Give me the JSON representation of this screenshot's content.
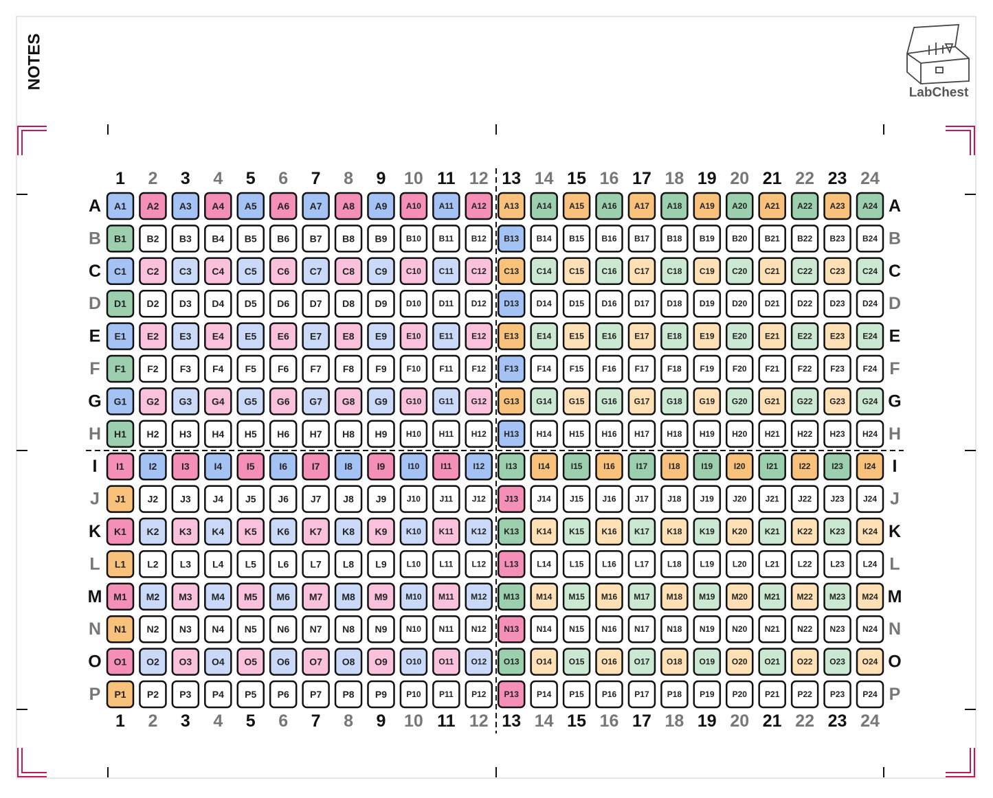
{
  "notes": "NOTES",
  "brand": "LabChest",
  "columns": [
    "1",
    "2",
    "3",
    "4",
    "5",
    "6",
    "7",
    "8",
    "9",
    "10",
    "11",
    "12",
    "13",
    "14",
    "15",
    "16",
    "17",
    "18",
    "19",
    "20",
    "21",
    "22",
    "23",
    "24"
  ],
  "rows": [
    "A",
    "B",
    "C",
    "D",
    "E",
    "F",
    "G",
    "H",
    "I",
    "J",
    "K",
    "L",
    "M",
    "N",
    "O",
    "P"
  ],
  "wells": [
    [
      "A1",
      "A2",
      "A3",
      "A4",
      "A5",
      "A6",
      "A7",
      "A8",
      "A9",
      "A10",
      "A11",
      "A12",
      "A13",
      "A14",
      "A15",
      "A16",
      "A17",
      "A18",
      "A19",
      "A20",
      "A21",
      "A22",
      "A23",
      "A24"
    ],
    [
      "B1",
      "B2",
      "B3",
      "B4",
      "B5",
      "B6",
      "B7",
      "B8",
      "B9",
      "B10",
      "B11",
      "B12",
      "B13",
      "B14",
      "B15",
      "B16",
      "B17",
      "B18",
      "B19",
      "B20",
      "B21",
      "B22",
      "B23",
      "B24"
    ],
    [
      "C1",
      "C2",
      "C3",
      "C4",
      "C5",
      "C6",
      "C7",
      "C8",
      "C9",
      "C10",
      "C11",
      "C12",
      "C13",
      "C14",
      "C15",
      "C16",
      "C17",
      "C18",
      "C19",
      "C20",
      "C21",
      "C22",
      "C23",
      "C24"
    ],
    [
      "D1",
      "D2",
      "D3",
      "D4",
      "D5",
      "D6",
      "D7",
      "D8",
      "D9",
      "D10",
      "D11",
      "D12",
      "D13",
      "D14",
      "D15",
      "D16",
      "D17",
      "D18",
      "D19",
      "D20",
      "D21",
      "D22",
      "D23",
      "D24"
    ],
    [
      "E1",
      "E2",
      "E3",
      "E4",
      "E5",
      "E6",
      "E7",
      "E8",
      "E9",
      "E10",
      "E11",
      "E12",
      "E13",
      "E14",
      "E15",
      "E16",
      "E17",
      "E18",
      "E19",
      "E20",
      "E21",
      "E22",
      "E23",
      "E24"
    ],
    [
      "F1",
      "F2",
      "F3",
      "F4",
      "F5",
      "F6",
      "F7",
      "F8",
      "F9",
      "F10",
      "F11",
      "F12",
      "F13",
      "F14",
      "F15",
      "F16",
      "F17",
      "F18",
      "F19",
      "F20",
      "F21",
      "F22",
      "F23",
      "F24"
    ],
    [
      "G1",
      "G2",
      "G3",
      "G4",
      "G5",
      "G6",
      "G7",
      "G8",
      "G9",
      "G10",
      "G11",
      "G12",
      "G13",
      "G14",
      "G15",
      "G16",
      "G17",
      "G18",
      "G19",
      "G20",
      "G21",
      "G22",
      "G23",
      "G24"
    ],
    [
      "H1",
      "H2",
      "H3",
      "H4",
      "H5",
      "H6",
      "H7",
      "H8",
      "H9",
      "H10",
      "H11",
      "H12",
      "H13",
      "H14",
      "H15",
      "H16",
      "H17",
      "H18",
      "H19",
      "H20",
      "H21",
      "H22",
      "H23",
      "H24"
    ],
    [
      "I1",
      "I2",
      "I3",
      "I4",
      "I5",
      "I6",
      "I7",
      "I8",
      "I9",
      "I10",
      "I11",
      "I12",
      "I13",
      "I14",
      "I15",
      "I16",
      "I17",
      "I18",
      "I19",
      "I20",
      "I21",
      "I22",
      "I23",
      "I24"
    ],
    [
      "J1",
      "J2",
      "J3",
      "J4",
      "J5",
      "J6",
      "J7",
      "J8",
      "J9",
      "J10",
      "J11",
      "J12",
      "J13",
      "J14",
      "J15",
      "J16",
      "J17",
      "J18",
      "J19",
      "J20",
      "J21",
      "J22",
      "J23",
      "J24"
    ],
    [
      "K1",
      "K2",
      "K3",
      "K4",
      "K5",
      "K6",
      "K7",
      "K8",
      "K9",
      "K10",
      "K11",
      "K12",
      "K13",
      "K14",
      "K15",
      "K16",
      "K17",
      "K18",
      "K19",
      "K20",
      "K21",
      "K22",
      "K23",
      "K24"
    ],
    [
      "L1",
      "L2",
      "L3",
      "L4",
      "L5",
      "L6",
      "L7",
      "L8",
      "L9",
      "L10",
      "L11",
      "L12",
      "L13",
      "L14",
      "L15",
      "L16",
      "L17",
      "L18",
      "L19",
      "L20",
      "L21",
      "L22",
      "L23",
      "L24"
    ],
    [
      "M1",
      "M2",
      "M3",
      "M4",
      "M5",
      "M6",
      "M7",
      "M8",
      "M9",
      "M10",
      "M11",
      "M12",
      "M13",
      "M14",
      "M15",
      "M16",
      "M17",
      "M18",
      "M19",
      "M20",
      "M21",
      "M22",
      "M23",
      "M24"
    ],
    [
      "N1",
      "N2",
      "N3",
      "N4",
      "N5",
      "N6",
      "N7",
      "N8",
      "N9",
      "N10",
      "N11",
      "N12",
      "N13",
      "N14",
      "N15",
      "N16",
      "N17",
      "N18",
      "N19",
      "N20",
      "N21",
      "N22",
      "N23",
      "N24"
    ],
    [
      "O1",
      "O2",
      "O3",
      "O4",
      "O5",
      "O6",
      "O7",
      "O8",
      "O9",
      "O10",
      "O11",
      "O12",
      "O13",
      "O14",
      "O15",
      "O16",
      "O17",
      "O18",
      "O19",
      "O20",
      "O21",
      "O22",
      "O23",
      "O24"
    ],
    [
      "P1",
      "P2",
      "P3",
      "P4",
      "P5",
      "P6",
      "P7",
      "P8",
      "P9",
      "P10",
      "P11",
      "P12",
      "P13",
      "P14",
      "P15",
      "P16",
      "P17",
      "P18",
      "P19",
      "P20",
      "P21",
      "P22",
      "P23",
      "P24"
    ]
  ]
}
